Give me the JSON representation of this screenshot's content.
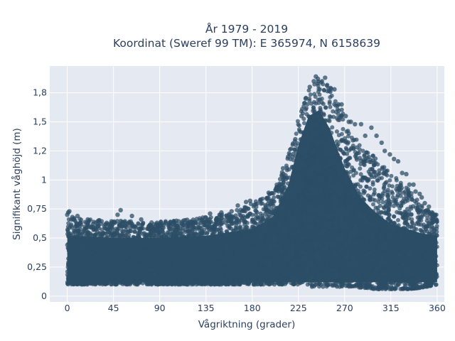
{
  "chart_data": {
    "type": "scatter",
    "title": "År 1979 - 2019",
    "subtitle": "Koordinat (Sweref 99 TM): E 365974, N 6158639",
    "xlabel": "Vågriktning (grader)",
    "ylabel": "Signifikant våghöjd (m)",
    "xlim": [
      -17,
      367
    ],
    "ylim": [
      -0.05,
      1.98
    ],
    "x_ticks": [
      0,
      45,
      90,
      135,
      180,
      225,
      270,
      315,
      360
    ],
    "x_tick_labels": [
      "0",
      "45",
      "90",
      "135",
      "180",
      "225",
      "270",
      "315",
      "360"
    ],
    "y_ticks": [
      0,
      0.25,
      0.5,
      0.75,
      1.0,
      1.25,
      1.5,
      1.75
    ],
    "y_tick_labels": [
      "0",
      "0,25",
      "0,5",
      "0,75",
      "1",
      "1,2",
      "1,5",
      "1,8"
    ],
    "grid": true,
    "marker_color": "#2c4e66",
    "plot_background": "#e5e9f1",
    "envelope": {
      "x": [
        0,
        20,
        45,
        90,
        135,
        160,
        180,
        200,
        215,
        225,
        235,
        240,
        245,
        255,
        265,
        275,
        290,
        300,
        315,
        330,
        345,
        360
      ],
      "y_min": [
        0.1,
        0.1,
        0.1,
        0.1,
        0.1,
        0.1,
        0.1,
        0.1,
        0.1,
        0.1,
        0.08,
        0.08,
        0.08,
        0.08,
        0.08,
        0.08,
        0.07,
        0.06,
        0.06,
        0.06,
        0.07,
        0.1
      ],
      "y_max": [
        0.68,
        0.66,
        0.65,
        0.64,
        0.68,
        0.72,
        0.8,
        0.9,
        1.2,
        1.55,
        1.78,
        1.86,
        1.9,
        1.82,
        1.65,
        1.45,
        1.25,
        1.2,
        1.05,
        0.95,
        0.78,
        0.7
      ]
    },
    "dense_core": {
      "x": [
        0,
        45,
        90,
        135,
        180,
        200,
        215,
        225,
        235,
        245,
        255,
        270,
        285,
        300,
        315,
        330,
        345,
        360
      ],
      "y_min": [
        0.12,
        0.12,
        0.12,
        0.12,
        0.12,
        0.12,
        0.12,
        0.12,
        0.12,
        0.12,
        0.12,
        0.12,
        0.12,
        0.12,
        0.12,
        0.12,
        0.12,
        0.12
      ],
      "y_max": [
        0.52,
        0.5,
        0.5,
        0.52,
        0.58,
        0.68,
        0.95,
        1.3,
        1.55,
        1.6,
        1.45,
        1.1,
        0.85,
        0.72,
        0.62,
        0.58,
        0.54,
        0.52
      ]
    },
    "points": [
      [
        0,
        0.7
      ],
      [
        1,
        0.72
      ],
      [
        2,
        0.73
      ],
      [
        5,
        0.68
      ],
      [
        10,
        0.69
      ],
      [
        20,
        0.66
      ],
      [
        30,
        0.6
      ],
      [
        40,
        0.62
      ],
      [
        49,
        0.7
      ],
      [
        52,
        0.74
      ],
      [
        63,
        0.69
      ],
      [
        72,
        0.66
      ],
      [
        80,
        0.6
      ],
      [
        87,
        0.62
      ],
      [
        100,
        0.58
      ],
      [
        113,
        0.61
      ],
      [
        125,
        0.63
      ],
      [
        139,
        0.71
      ],
      [
        150,
        0.72
      ],
      [
        160,
        0.73
      ],
      [
        166,
        0.78
      ],
      [
        174,
        0.81
      ],
      [
        178,
        0.82
      ],
      [
        188,
        0.83
      ],
      [
        196,
        0.89
      ],
      [
        203,
        0.92
      ],
      [
        210,
        1.1
      ],
      [
        215,
        1.2
      ],
      [
        222,
        1.35
      ],
      [
        228,
        1.55
      ],
      [
        232,
        1.7
      ],
      [
        236,
        1.8
      ],
      [
        240,
        1.85
      ],
      [
        242,
        1.89
      ],
      [
        244,
        1.87
      ],
      [
        247,
        1.84
      ],
      [
        251,
        1.88
      ],
      [
        256,
        1.76
      ],
      [
        260,
        1.78
      ],
      [
        264,
        1.65
      ],
      [
        267,
        1.65
      ],
      [
        271,
        1.55
      ],
      [
        274,
        1.5
      ],
      [
        276,
        1.5
      ],
      [
        280,
        1.48
      ],
      [
        286,
        1.48
      ],
      [
        290,
        1.38
      ],
      [
        296,
        1.45
      ],
      [
        301,
        1.38
      ],
      [
        306,
        1.32
      ],
      [
        309,
        1.25
      ],
      [
        314,
        1.22
      ],
      [
        318,
        1.18
      ],
      [
        322,
        1.16
      ],
      [
        326,
        1.06
      ],
      [
        330,
        1.05
      ],
      [
        333,
        0.96
      ],
      [
        337,
        0.96
      ],
      [
        339,
        0.9
      ],
      [
        343,
        0.88
      ],
      [
        345,
        0.85
      ],
      [
        348,
        0.8
      ],
      [
        352,
        0.77
      ],
      [
        355,
        0.72
      ],
      [
        358,
        0.7
      ]
    ]
  }
}
